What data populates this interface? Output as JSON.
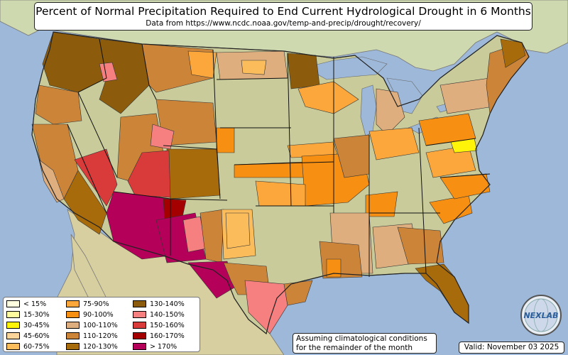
{
  "title": "Percent of Normal Precipitation Required to End Current Hydrological Drought in 6 Months",
  "subtitle": "Data from https://www.ncdc.noaa.gov/temp-and-precip/drought/recovery/",
  "legend": {
    "items": [
      {
        "label": "< 15%",
        "color": "#fffee0"
      },
      {
        "label": "15-30%",
        "color": "#fffb9e"
      },
      {
        "label": "30-45%",
        "color": "#fef40a"
      },
      {
        "label": "45-60%",
        "color": "#fcd59a"
      },
      {
        "label": "60-75%",
        "color": "#fbbc5c"
      },
      {
        "label": "75-90%",
        "color": "#fba73c"
      },
      {
        "label": "90-100%",
        "color": "#f68f12"
      },
      {
        "label": "100-110%",
        "color": "#dfae7e"
      },
      {
        "label": "110-120%",
        "color": "#cc8439"
      },
      {
        "label": "120-130%",
        "color": "#a86b0b"
      },
      {
        "label": "130-140%",
        "color": "#8c5c0c"
      },
      {
        "label": "140-150%",
        "color": "#f67f7f"
      },
      {
        "label": "150-160%",
        "color": "#d93a3a"
      },
      {
        "label": "160-170%",
        "color": "#a40000"
      },
      {
        "label": "> 170%",
        "color": "#b5005a"
      }
    ]
  },
  "note": {
    "line1": "Assuming climatological conditions",
    "line2": "for the remainder of the month"
  },
  "valid": "Valid: November 03 2025",
  "logo": {
    "text": "NEXLAB",
    "icon": "globe-icon"
  }
}
